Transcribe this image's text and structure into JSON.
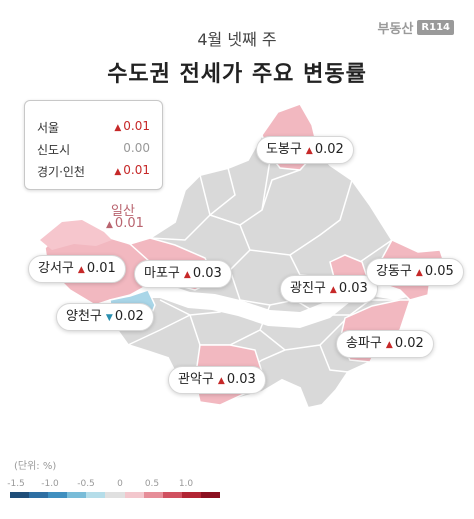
{
  "header": {
    "subtitle": "4월 넷째 주",
    "title": "수도권 전세가 주요 변동률",
    "logo_text": "부동산",
    "logo_mark": "R114"
  },
  "summary": [
    {
      "name": "서울",
      "value": "0.01",
      "direction": "up"
    },
    {
      "name": "신도시",
      "value": "0.00",
      "direction": "flat"
    },
    {
      "name": "경기·인천",
      "value": "0.01",
      "direction": "up"
    }
  ],
  "districts": [
    {
      "name": "도봉구",
      "value": "0.02",
      "direction": "up"
    },
    {
      "name": "강서구",
      "value": "0.01",
      "direction": "up"
    },
    {
      "name": "마포구",
      "value": "0.03",
      "direction": "up"
    },
    {
      "name": "광진구",
      "value": "0.03",
      "direction": "up"
    },
    {
      "name": "강동구",
      "value": "0.05",
      "direction": "up"
    },
    {
      "name": "양천구",
      "value": "0.02",
      "direction": "down"
    },
    {
      "name": "송파구",
      "value": "0.02",
      "direction": "up"
    },
    {
      "name": "관악구",
      "value": "0.03",
      "direction": "up"
    }
  ],
  "ilsan": {
    "name": "일산",
    "value": "0.01",
    "direction": "up"
  },
  "legend": {
    "unit_label": "(단위: %)",
    "ticks": [
      "-1.5",
      "-1.0",
      "-0.5",
      "0",
      "0.5",
      "1.0"
    ],
    "colors": [
      "#1f4e79",
      "#2e6fa3",
      "#3f8fbf",
      "#79bcd8",
      "#b5dde9",
      "#e0e0e0",
      "#f3c7cd",
      "#e68d98",
      "#d0505f",
      "#b22433",
      "#8b1020"
    ]
  },
  "colors": {
    "up": "#c62828",
    "down": "#2a8fb0",
    "map_neutral": "#d9d9d9",
    "map_pink": "#f2b8c0",
    "map_blue": "#a9d6e8"
  }
}
